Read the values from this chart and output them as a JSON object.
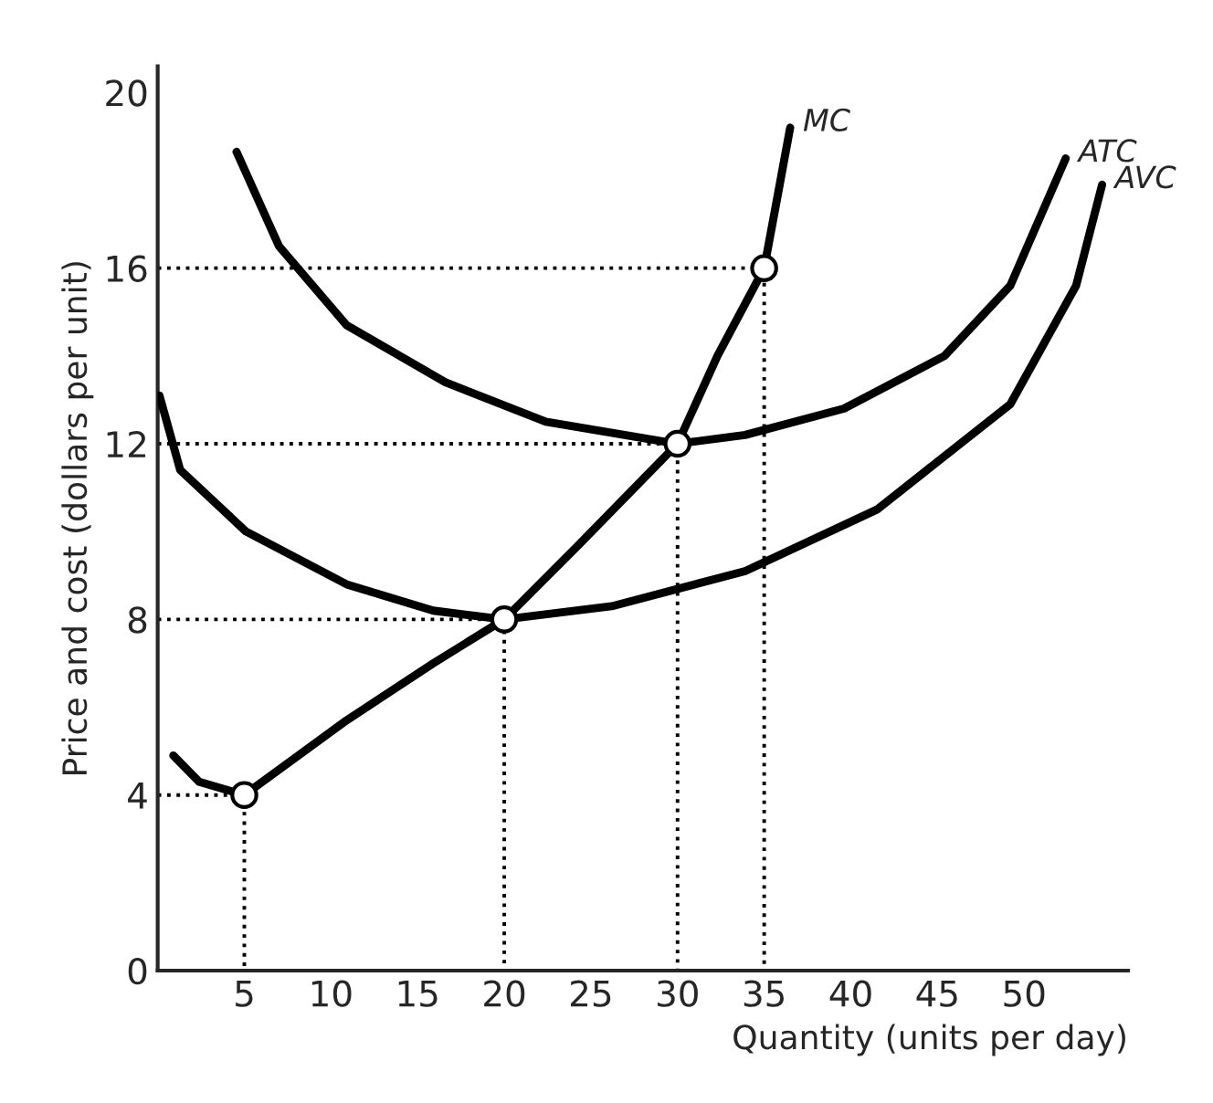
{
  "chart_data": {
    "type": "line",
    "xlabel": "Quantity (units per day)",
    "ylabel": "Price and cost (dollars per unit)",
    "xlim": [
      0,
      56
    ],
    "ylim": [
      0,
      20.6
    ],
    "xticks": [
      5,
      10,
      15,
      20,
      25,
      30,
      35,
      40,
      45,
      50
    ],
    "yticks": [
      0,
      4,
      8,
      12,
      16,
      20
    ],
    "grid": false,
    "legend": false,
    "marker": "none",
    "line_style": "solid",
    "series": [
      {
        "name": "MC",
        "color": "#000000",
        "x": [
          0.9,
          2.4,
          5,
          10.9,
          15.9,
          20,
          24.3,
          30,
          32.3,
          35,
          35.8,
          36.5
        ],
        "values": [
          4.9,
          4.3,
          4.0,
          5.7,
          7.0,
          8.0,
          9.7,
          12.0,
          14.0,
          16.0,
          17.7,
          19.2
        ]
      },
      {
        "name": "ATC",
        "color": "#000000",
        "x": [
          4.55,
          7.0,
          10.9,
          16.6,
          22.4,
          30,
          33.9,
          39.6,
          45.4,
          49.2,
          52.4
        ],
        "values": [
          18.65,
          16.5,
          14.7,
          13.4,
          12.5,
          12.0,
          12.2,
          12.8,
          14.0,
          15.6,
          18.5
        ]
      },
      {
        "name": "AVC",
        "color": "#000000",
        "x": [
          0.1,
          1.3,
          5.1,
          10.9,
          15.9,
          20,
          26.2,
          33.9,
          41.5,
          49.2,
          53,
          54.5
        ],
        "values": [
          13.1,
          11.4,
          10.0,
          8.8,
          8.2,
          8.0,
          8.3,
          9.1,
          10.5,
          12.9,
          15.6,
          17.9
        ]
      },
      {
        "color": "#000000",
        "line_style": "dotted",
        "x": [
          0,
          5,
          5
        ],
        "values": [
          4,
          4,
          0
        ]
      },
      {
        "color": "#000000",
        "line_style": "dotted",
        "x": [
          0,
          20,
          20
        ],
        "values": [
          8,
          8,
          0
        ]
      },
      {
        "color": "#000000",
        "line_style": "dotted",
        "x": [
          0,
          30,
          30
        ],
        "values": [
          12,
          12,
          0
        ]
      },
      {
        "color": "#000000",
        "line_style": "dotted",
        "x": [
          0,
          35,
          35
        ],
        "values": [
          16,
          16,
          0
        ]
      },
      {
        "type": "scatter",
        "color": "#000000",
        "marker": "circle",
        "x": [
          5,
          20,
          30,
          35
        ],
        "values": [
          4,
          8,
          12,
          16
        ]
      }
    ]
  }
}
